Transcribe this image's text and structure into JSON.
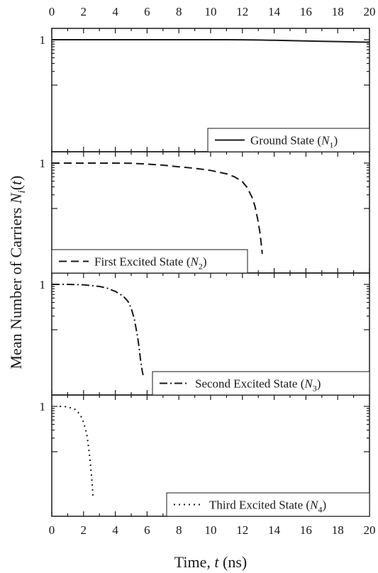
{
  "chart_data": {
    "type": "line",
    "layout": "stacked panels sharing the time axis",
    "xlabel": "Time, t (ns)",
    "ylabel": "Mean Number of Carriers N_i(t)",
    "xlim": [
      0,
      20
    ],
    "x_ticks": [
      0,
      2,
      4,
      6,
      8,
      10,
      12,
      14,
      16,
      18,
      20
    ],
    "x_tick_labels": [
      "0",
      "2",
      "4",
      "6",
      "8",
      "10",
      "12",
      "14",
      "16",
      "18",
      "20"
    ],
    "y_scale": "log",
    "y_tick_label": "1",
    "panels": [
      {
        "legend": {
          "text": "Ground State (",
          "symbol": "N",
          "subscript": "1",
          "close": ")",
          "style": "solid",
          "position": "bottom-right"
        },
        "series": [
          {
            "x": [
              0,
              2,
              4,
              6,
              8,
              10,
              11,
              12,
              13,
              14,
              15,
              16,
              17,
              18,
              19,
              20
            ],
            "y": [
              1,
              1,
              1,
              1,
              1,
              1,
              1,
              0.995,
              0.985,
              0.97,
              0.955,
              0.94,
              0.925,
              0.91,
              0.895,
              0.88
            ]
          }
        ]
      },
      {
        "legend": {
          "text": "First Excited State (",
          "symbol": "N",
          "subscript": "2",
          "close": ")",
          "style": "dashed",
          "position": "bottom-left"
        },
        "series": [
          {
            "x": [
              0,
              2,
              4,
              5,
              6,
              7,
              8,
              9,
              10,
              11,
              11.5,
              12,
              12.3,
              12.6,
              12.8,
              13.0,
              13.1,
              13.2,
              13.25
            ],
            "y": [
              1,
              1,
              1,
              0.99,
              0.95,
              0.9,
              0.83,
              0.77,
              0.69,
              0.58,
              0.5,
              0.39,
              0.29,
              0.18,
              0.11,
              0.05,
              0.03,
              0.015,
              0.01
            ]
          }
        ]
      },
      {
        "legend": {
          "text": "Second Excited State (",
          "symbol": "N",
          "subscript": "3",
          "close": ")",
          "style": "dash-dot",
          "position": "bottom-right"
        },
        "series": [
          {
            "x": [
              0,
              1,
              2,
              3,
              3.5,
              4,
              4.5,
              4.8,
              5.0,
              5.2,
              5.4,
              5.5,
              5.6,
              5.7,
              5.75
            ],
            "y": [
              1,
              1,
              0.98,
              0.9,
              0.82,
              0.7,
              0.55,
              0.42,
              0.3,
              0.17,
              0.07,
              0.04,
              0.02,
              0.012,
              0.01
            ]
          }
        ]
      },
      {
        "legend": {
          "text": "Third Excited State (",
          "symbol": "N",
          "subscript": "4",
          "close": ")",
          "style": "dotted",
          "position": "bottom-right"
        },
        "series": [
          {
            "x": [
              0.5,
              1,
              1.5,
              1.8,
              2.0,
              2.2,
              2.3,
              2.4,
              2.5,
              2.55,
              2.6
            ],
            "y": [
              1,
              0.98,
              0.85,
              0.65,
              0.45,
              0.25,
              0.14,
              0.07,
              0.03,
              0.018,
              0.01
            ]
          }
        ]
      }
    ]
  }
}
